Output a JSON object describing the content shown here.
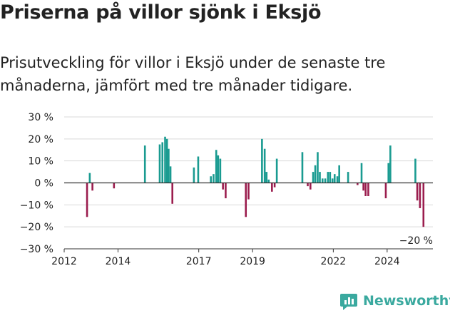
{
  "header": {
    "title": "Priserna på villor sjönk i Eksjö",
    "subtitle": "Prisutveckling för villor i Eksjö under de senaste tre månaderna, jämfört med tre månader tidigare."
  },
  "brand": {
    "name": "Newsworthy",
    "icon": "newsworthy-logo-icon"
  },
  "colors": {
    "positive": "#1a9b91",
    "negative": "#9b1d4e",
    "grid": "#d9d9d9",
    "zero": "#333333"
  },
  "chart_data": {
    "type": "bar",
    "title": "",
    "xlabel": "",
    "ylabel": "",
    "ylim": [
      -30,
      30
    ],
    "xlim": [
      2012,
      2025.7
    ],
    "yticks": [
      "30 %",
      "20 %",
      "10 %",
      "0 %",
      "−10 %",
      "−20 %",
      "−30 %"
    ],
    "ytick_values": [
      30,
      20,
      10,
      0,
      -10,
      -20,
      -30
    ],
    "xticks": [
      "2012",
      "2014",
      "2017",
      "2019",
      "2022",
      "2024"
    ],
    "xtick_values": [
      2012,
      2014,
      2017,
      2019,
      2022,
      2024
    ],
    "grid": true,
    "annotation": "−20 %",
    "series": [
      {
        "values": [
          {
            "x": 2012.85,
            "y": -15.5
          },
          {
            "x": 2012.95,
            "y": 4.5
          },
          {
            "x": 2013.05,
            "y": -3.5
          },
          {
            "x": 2013.85,
            "y": -2.5
          },
          {
            "x": 2015.0,
            "y": 17.0
          },
          {
            "x": 2015.55,
            "y": 17.5
          },
          {
            "x": 2015.65,
            "y": 18.5
          },
          {
            "x": 2015.75,
            "y": 21.0
          },
          {
            "x": 2015.82,
            "y": 20.0
          },
          {
            "x": 2015.88,
            "y": 15.5
          },
          {
            "x": 2015.95,
            "y": 7.5
          },
          {
            "x": 2016.02,
            "y": -9.5
          },
          {
            "x": 2016.82,
            "y": 7.0
          },
          {
            "x": 2016.98,
            "y": 12.0
          },
          {
            "x": 2017.45,
            "y": 3.0
          },
          {
            "x": 2017.55,
            "y": 4.0
          },
          {
            "x": 2017.65,
            "y": 15.0
          },
          {
            "x": 2017.72,
            "y": 12.5
          },
          {
            "x": 2017.8,
            "y": 11.0
          },
          {
            "x": 2017.9,
            "y": -3.0
          },
          {
            "x": 2018.0,
            "y": -7.0
          },
          {
            "x": 2018.75,
            "y": -15.5
          },
          {
            "x": 2018.85,
            "y": -7.5
          },
          {
            "x": 2019.35,
            "y": 20.0
          },
          {
            "x": 2019.45,
            "y": 15.5
          },
          {
            "x": 2019.52,
            "y": 5.0
          },
          {
            "x": 2019.6,
            "y": 1.5
          },
          {
            "x": 2019.72,
            "y": -4.0
          },
          {
            "x": 2019.82,
            "y": -2.0
          },
          {
            "x": 2019.9,
            "y": 11.0
          },
          {
            "x": 2020.85,
            "y": 14.0
          },
          {
            "x": 2021.05,
            "y": -1.5
          },
          {
            "x": 2021.15,
            "y": -3.0
          },
          {
            "x": 2021.25,
            "y": 5.0
          },
          {
            "x": 2021.33,
            "y": 8.0
          },
          {
            "x": 2021.42,
            "y": 14.0
          },
          {
            "x": 2021.5,
            "y": 5.0
          },
          {
            "x": 2021.6,
            "y": 2.0
          },
          {
            "x": 2021.7,
            "y": 2.0
          },
          {
            "x": 2021.8,
            "y": 5.0
          },
          {
            "x": 2021.88,
            "y": 5.0
          },
          {
            "x": 2021.97,
            "y": 2.0
          },
          {
            "x": 2022.05,
            "y": 4.0
          },
          {
            "x": 2022.15,
            "y": 3.0
          },
          {
            "x": 2022.22,
            "y": 8.0
          },
          {
            "x": 2022.55,
            "y": 5.0
          },
          {
            "x": 2022.9,
            "y": -1.0
          },
          {
            "x": 2023.05,
            "y": 9.0
          },
          {
            "x": 2023.12,
            "y": -3.5
          },
          {
            "x": 2023.2,
            "y": -6.0
          },
          {
            "x": 2023.3,
            "y": -6.0
          },
          {
            "x": 2023.95,
            "y": -7.0
          },
          {
            "x": 2024.05,
            "y": 9.0
          },
          {
            "x": 2024.12,
            "y": 17.0
          },
          {
            "x": 2025.05,
            "y": 11.0
          },
          {
            "x": 2025.12,
            "y": -8.0
          },
          {
            "x": 2025.22,
            "y": -11.5
          },
          {
            "x": 2025.35,
            "y": -20.0
          }
        ]
      }
    ]
  }
}
